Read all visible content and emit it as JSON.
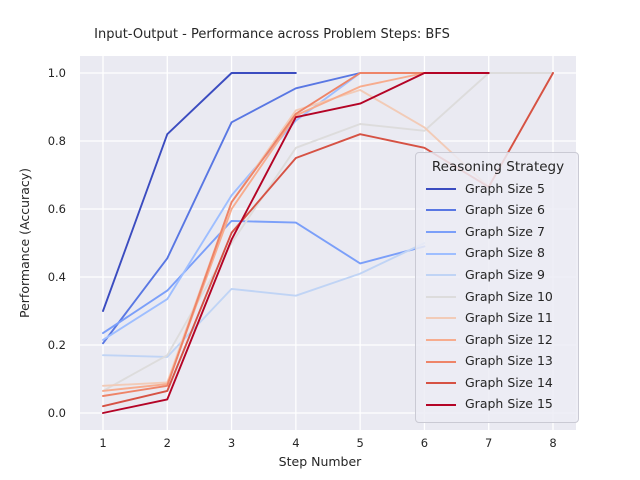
{
  "chart_data": {
    "type": "line",
    "title": "Input-Output - Performance across Problem Steps: BFS",
    "xlabel": "Step Number",
    "ylabel": "Performance (Accuracy)",
    "x_ticks": [
      1,
      2,
      3,
      4,
      5,
      6,
      7,
      8
    ],
    "y_ticks": [
      "0.0",
      "0.2",
      "0.4",
      "0.6",
      "0.8",
      "1.0"
    ],
    "xlim": [
      0.65,
      8.35
    ],
    "ylim": [
      -0.05,
      1.05
    ],
    "grid": true,
    "legend_title": "Reasoning Strategy",
    "legend_position": "right",
    "style": {
      "plot_background": "#eaeaf2",
      "grid_color": "#ffffff",
      "text_color": "#262626"
    },
    "series": [
      {
        "name": "Graph Size 5",
        "color": "#3b4cc0",
        "values": [
          0.3,
          0.82,
          1.0,
          1.0
        ]
      },
      {
        "name": "Graph Size 6",
        "color": "#5977e3",
        "values": [
          0.205,
          0.455,
          0.855,
          0.955,
          1.0
        ]
      },
      {
        "name": "Graph Size 7",
        "color": "#7b9ff9",
        "values": [
          0.235,
          0.36,
          0.565,
          0.56,
          0.44,
          0.49
        ]
      },
      {
        "name": "Graph Size 8",
        "color": "#9ebeff",
        "values": [
          0.215,
          0.335,
          0.64,
          0.86,
          1.0
        ]
      },
      {
        "name": "Graph Size 9",
        "color": "#c0d4f5",
        "values": [
          0.17,
          0.165,
          0.365,
          0.345,
          0.41,
          0.5
        ]
      },
      {
        "name": "Graph Size 10",
        "color": "#dddcdc",
        "values": [
          0.065,
          0.17,
          0.5,
          0.78,
          0.85,
          0.83,
          1.0,
          1.0
        ]
      },
      {
        "name": "Graph Size 11",
        "color": "#f2cbb7",
        "values": [
          0.08,
          0.09,
          0.62,
          0.89,
          0.95,
          0.84,
          0.665,
          1.0
        ]
      },
      {
        "name": "Graph Size 12",
        "color": "#f7ac8e",
        "values": [
          0.065,
          0.085,
          0.6,
          0.875,
          0.96,
          1.0
        ]
      },
      {
        "name": "Graph Size 13",
        "color": "#ee8468",
        "values": [
          0.05,
          0.08,
          0.62,
          0.88,
          1.0,
          1.0,
          1.0
        ]
      },
      {
        "name": "Graph Size 14",
        "color": "#d65244",
        "values": [
          0.02,
          0.065,
          0.53,
          0.75,
          0.82,
          0.78,
          0.665,
          1.0
        ]
      },
      {
        "name": "Graph Size 15",
        "color": "#b40426",
        "values": [
          0.0,
          0.04,
          0.51,
          0.87,
          0.91,
          1.0,
          1.0
        ]
      }
    ]
  }
}
